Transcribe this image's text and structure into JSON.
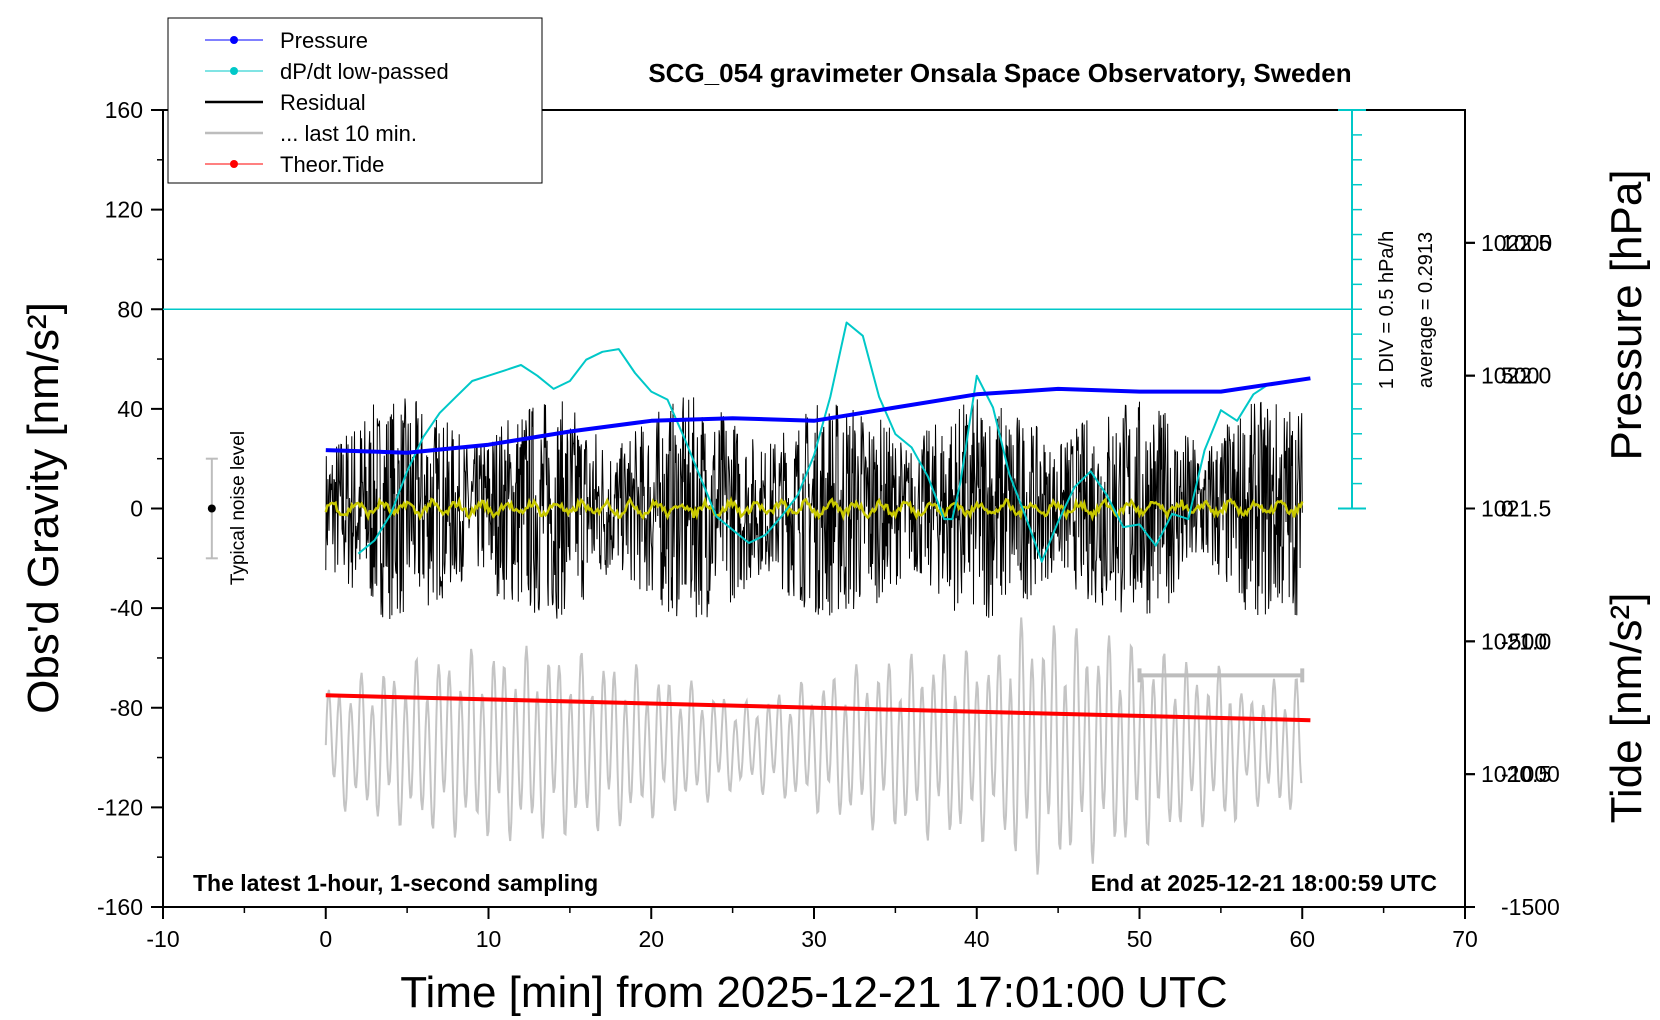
{
  "chart_data": {
    "type": "line",
    "title": "SCG_054 gravimeter Onsala Space Observatory, Sweden",
    "footer_left": "The latest 1-hour, 1-second sampling",
    "footer_right": "End at 2025-12-21 18:00:59 UTC",
    "xlabel": "Time [min] from 2025-12-21 17:01:00 UTC",
    "ylabel_left": "Obs'd Gravity [nm/s²]",
    "ylabel_right_top": "Pressure [hPa]",
    "ylabel_right_bottom": "Tide [nm/s²]",
    "xlim": [
      -10,
      70
    ],
    "ylim_left": [
      -160,
      160
    ],
    "pressure_lim": [
      1020.0,
      1023.0
    ],
    "tide_lim": [
      -1500,
      1500
    ],
    "x_ticks": [
      "-10",
      "0",
      "10",
      "20",
      "30",
      "40",
      "50",
      "60",
      "70"
    ],
    "y_ticks_left": [
      "160",
      "120",
      "80",
      "40",
      "0",
      "-40",
      "-80",
      "-120",
      "-160"
    ],
    "pressure_ticks": [
      "1022.5",
      "1022.0",
      "1021.5",
      "1021.0",
      "1020.5"
    ],
    "tide_ticks": [
      "1000",
      "500",
      "0",
      "-500",
      "-1000",
      "-1500"
    ],
    "dpdt_scale_label": "1 DIV = 0.5 hPa/h",
    "dpdt_average_label": "average = 0.2913",
    "noise_label": "Typical noise level",
    "noise_bar": {
      "x": -7,
      "center": 0,
      "half_range": 20
    },
    "legend": [
      {
        "label": "Pressure",
        "color": "#0000ff",
        "marker": true
      },
      {
        "label": "dP/dt low-passed",
        "color": "#00c8c8",
        "marker": true
      },
      {
        "label": "Residual",
        "color": "#000000",
        "marker": false
      },
      {
        "label": "... last 10 min.",
        "color": "#bdbdbd",
        "marker": false
      },
      {
        "label": "Theor.Tide",
        "color": "#ff0000",
        "marker": true
      }
    ],
    "series": [
      {
        "name": "Pressure",
        "axis": "pressure",
        "color": "#0000ff",
        "x": [
          0,
          5,
          10,
          15,
          20,
          25,
          30,
          35,
          40,
          45,
          50,
          55,
          60.5
        ],
        "y": [
          1021.72,
          1021.71,
          1021.74,
          1021.79,
          1021.83,
          1021.84,
          1021.83,
          1021.88,
          1021.93,
          1021.95,
          1021.94,
          1021.94,
          1021.99
        ]
      },
      {
        "name": "dP/dt low-passed",
        "axis": "pressure",
        "color": "#00c8c8",
        "x": [
          2,
          3,
          4,
          5,
          6,
          7,
          8,
          9,
          10,
          11,
          12,
          13,
          14,
          15,
          16,
          17,
          18,
          19,
          20,
          21,
          22,
          23,
          24,
          25,
          26,
          27,
          28,
          29,
          30,
          31,
          32,
          33,
          34,
          35,
          36,
          37,
          38,
          38.5,
          39,
          40,
          41,
          42,
          43,
          44,
          45,
          46,
          47,
          48,
          49,
          50,
          51,
          52,
          53,
          54,
          55,
          56,
          57,
          58
        ],
        "y": [
          1021.33,
          1021.38,
          1021.48,
          1021.64,
          1021.77,
          1021.86,
          1021.92,
          1021.98,
          1022.0,
          1022.02,
          1022.04,
          1022.0,
          1021.95,
          1021.98,
          1022.06,
          1022.09,
          1022.1,
          1022.01,
          1021.94,
          1021.91,
          1021.77,
          1021.62,
          1021.47,
          1021.42,
          1021.37,
          1021.4,
          1021.47,
          1021.55,
          1021.7,
          1021.92,
          1022.2,
          1022.15,
          1021.92,
          1021.78,
          1021.73,
          1021.62,
          1021.46,
          1021.46,
          1021.6,
          1022.0,
          1021.88,
          1021.63,
          1021.47,
          1021.3,
          1021.45,
          1021.58,
          1021.64,
          1021.55,
          1021.43,
          1021.44,
          1021.36,
          1021.48,
          1021.46,
          1021.72,
          1021.87,
          1021.83,
          1021.93,
          1021.97
        ]
      },
      {
        "name": "Residual",
        "axis": "left",
        "color": "#000000",
        "amplitude_envelope": 45,
        "x_range": [
          0,
          60
        ]
      },
      {
        "name": "Residual (smoothed)",
        "axis": "left",
        "color": "#c8c800",
        "x_range": [
          0,
          60
        ],
        "level": 0
      },
      {
        "name": "Theor.Tide",
        "axis": "left",
        "color": "#ff0000",
        "x": [
          0,
          60.5
        ],
        "y": [
          -75,
          -85
        ]
      },
      {
        "name": "... last 10 min.",
        "axis": "left",
        "color": "#bdbdbd",
        "x_range": [
          50,
          60
        ],
        "y": -67
      }
    ]
  }
}
